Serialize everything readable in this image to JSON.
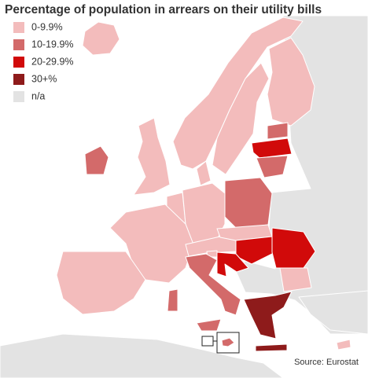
{
  "title": "Percentage of population in arrears on their utility bills",
  "legend": {
    "items": [
      {
        "label": "0-9.9%",
        "color": "#f3bcbc"
      },
      {
        "label": "10-19.9%",
        "color": "#d36a6a"
      },
      {
        "label": "20-29.9%",
        "color": "#d10a0a"
      },
      {
        "label": "30+%",
        "color": "#8e1b1b"
      },
      {
        "label": "n/a",
        "color": "#e3e3e3"
      }
    ]
  },
  "source": "Source: Eurostat"
}
